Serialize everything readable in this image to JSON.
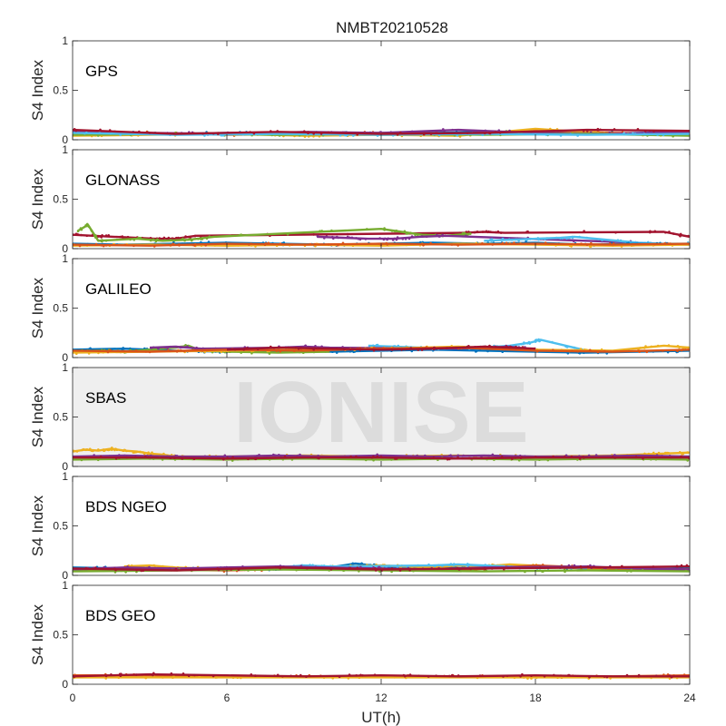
{
  "chart_data": {
    "type": "scatter",
    "title": "NMBT20210528",
    "xlabel": "UT(h)",
    "ylabel": "S4 Index",
    "xlim": [
      0,
      24
    ],
    "ylim": [
      0,
      1
    ],
    "x_ticks": [
      "0",
      "6",
      "12",
      "18",
      "24"
    ],
    "y_ticks": [
      "0",
      "0.5",
      "1"
    ],
    "watermark": "IONISE",
    "grid": false,
    "panels": [
      {
        "label": "GPS",
        "series": [
          {
            "color": "#0072bd",
            "x": [
              0,
              2,
              4,
              6,
              8,
              10,
              12,
              14,
              16,
              18,
              20,
              22,
              24
            ],
            "y": [
              0.08,
              0.07,
              0.06,
              0.07,
              0.06,
              0.07,
              0.06,
              0.07,
              0.08,
              0.07,
              0.06,
              0.07,
              0.08
            ]
          },
          {
            "color": "#d95319",
            "x": [
              0,
              3,
              6,
              9,
              12,
              15,
              18,
              21,
              24
            ],
            "y": [
              0.06,
              0.07,
              0.05,
              0.06,
              0.07,
              0.06,
              0.09,
              0.07,
              0.06
            ]
          },
          {
            "color": "#edb120",
            "x": [
              0,
              3,
              6,
              9,
              12,
              15,
              18,
              21,
              24
            ],
            "y": [
              0.04,
              0.05,
              0.06,
              0.04,
              0.05,
              0.04,
              0.11,
              0.06,
              0.05
            ]
          },
          {
            "color": "#7e2f8e",
            "x": [
              0,
              3,
              6,
              9,
              12,
              15,
              18,
              21,
              24
            ],
            "y": [
              0.09,
              0.07,
              0.06,
              0.08,
              0.07,
              0.1,
              0.07,
              0.06,
              0.08
            ]
          },
          {
            "color": "#77ac30",
            "x": [
              0,
              4,
              8,
              12,
              16,
              20,
              24
            ],
            "y": [
              0.05,
              0.06,
              0.05,
              0.06,
              0.05,
              0.06,
              0.04
            ]
          },
          {
            "color": "#4dbeee",
            "x": [
              0,
              4,
              8,
              12,
              16,
              20,
              24
            ],
            "y": [
              0.07,
              0.05,
              0.06,
              0.05,
              0.06,
              0.05,
              0.06
            ]
          },
          {
            "color": "#a2142f",
            "x": [
              0,
              4,
              8,
              12,
              16,
              20,
              24
            ],
            "y": [
              0.1,
              0.06,
              0.08,
              0.06,
              0.07,
              0.1,
              0.09
            ]
          }
        ]
      },
      {
        "label": "GLONASS",
        "series": [
          {
            "color": "#a2142f",
            "x": [
              0,
              0.8,
              1.6,
              2.4,
              3.2,
              4.0,
              4.8,
              15.2,
              16.0,
              16.8,
              23.0,
              24.0
            ],
            "y": [
              0.14,
              0.13,
              0.12,
              0.11,
              0.1,
              0.1,
              0.13,
              0.16,
              0.17,
              0.16,
              0.17,
              0.12
            ]
          },
          {
            "color": "#77ac30",
            "x": [
              0.2,
              0.6,
              1.0,
              2.5,
              3.5,
              4.5,
              5.5,
              12.0,
              12.8,
              13.6,
              14.5,
              15.5
            ],
            "y": [
              0.18,
              0.24,
              0.08,
              0.1,
              0.08,
              0.09,
              0.12,
              0.2,
              0.17,
              0.14,
              0.13,
              0.15
            ]
          },
          {
            "color": "#7e2f8e",
            "x": [
              9.5,
              10.5,
              11.5,
              12.5,
              13.5,
              14.5,
              21.0,
              22.0
            ],
            "y": [
              0.12,
              0.11,
              0.1,
              0.1,
              0.12,
              0.13,
              0.07,
              0.06
            ]
          },
          {
            "color": "#4dbeee",
            "x": [
              16.0,
              17.0,
              18.0,
              19.0,
              19.5,
              22.0,
              23.0,
              24.0
            ],
            "y": [
              0.08,
              0.09,
              0.1,
              0.11,
              0.12,
              0.06,
              0.05,
              0.05
            ]
          },
          {
            "color": "#0072bd",
            "x": [
              0,
              2,
              4,
              6,
              8,
              10,
              12,
              14,
              16,
              18,
              20,
              22,
              24
            ],
            "y": [
              0.05,
              0.04,
              0.05,
              0.06,
              0.05,
              0.04,
              0.05,
              0.06,
              0.05,
              0.06,
              0.04,
              0.05,
              0.04
            ]
          },
          {
            "color": "#edb120",
            "x": [
              0,
              3,
              6,
              9,
              12,
              15,
              18,
              21,
              24
            ],
            "y": [
              0.03,
              0.04,
              0.03,
              0.04,
              0.03,
              0.05,
              0.04,
              0.03,
              0.04
            ]
          },
          {
            "color": "#d95319",
            "x": [
              0,
              3,
              6,
              9,
              12,
              15,
              18,
              21,
              24
            ],
            "y": [
              0.04,
              0.03,
              0.05,
              0.04,
              0.05,
              0.04,
              0.05,
              0.04,
              0.05
            ]
          }
        ]
      },
      {
        "label": "GALILEO",
        "series": [
          {
            "color": "#0072bd",
            "x": [
              0,
              2,
              4,
              6,
              8,
              10,
              12,
              14,
              16,
              18,
              20,
              22,
              24
            ],
            "y": [
              0.08,
              0.09,
              0.07,
              0.06,
              0.07,
              0.06,
              0.07,
              0.08,
              0.07,
              0.06,
              0.05,
              0.06,
              0.07
            ]
          },
          {
            "color": "#77ac30",
            "x": [
              0,
              1,
              2,
              3,
              4,
              4.5,
              5,
              6,
              8,
              10
            ],
            "y": [
              0.06,
              0.07,
              0.06,
              0.08,
              0.1,
              0.12,
              0.07,
              0.06,
              0.05,
              0.06
            ]
          },
          {
            "color": "#4dbeee",
            "x": [
              11.5,
              12.5,
              13.5,
              14.5,
              16,
              17,
              17.8,
              18.2,
              20
            ],
            "y": [
              0.12,
              0.11,
              0.1,
              0.09,
              0.1,
              0.12,
              0.15,
              0.18,
              0.07
            ]
          },
          {
            "color": "#7e2f8e",
            "x": [
              3,
              4,
              5,
              8,
              9,
              10,
              15,
              16,
              17,
              18
            ],
            "y": [
              0.1,
              0.11,
              0.09,
              0.1,
              0.11,
              0.1,
              0.09,
              0.1,
              0.11,
              0.08
            ]
          },
          {
            "color": "#edb120",
            "x": [
              0,
              3,
              6,
              9,
              12,
              15,
              18,
              21,
              23,
              24
            ],
            "y": [
              0.05,
              0.06,
              0.07,
              0.08,
              0.09,
              0.11,
              0.08,
              0.07,
              0.12,
              0.1
            ]
          },
          {
            "color": "#d95319",
            "x": [
              0,
              3,
              6,
              9,
              12,
              15,
              18,
              21,
              24
            ],
            "y": [
              0.07,
              0.06,
              0.08,
              0.07,
              0.09,
              0.1,
              0.07,
              0.06,
              0.08
            ]
          },
          {
            "color": "#a2142f",
            "x": [
              6,
              8,
              10,
              12,
              14,
              16,
              18
            ],
            "y": [
              0.08,
              0.1,
              0.09,
              0.08,
              0.09,
              0.11,
              0.09
            ]
          }
        ]
      },
      {
        "label": "SBAS",
        "series": [
          {
            "color": "#edb120",
            "x": [
              0,
              0.5,
              1,
              1.5,
              2,
              2.5,
              3,
              3.5,
              4,
              6,
              9,
              12,
              15,
              18,
              21,
              23,
              24
            ],
            "y": [
              0.15,
              0.17,
              0.16,
              0.18,
              0.16,
              0.15,
              0.13,
              0.12,
              0.1,
              0.1,
              0.11,
              0.1,
              0.11,
              0.1,
              0.11,
              0.13,
              0.14
            ]
          },
          {
            "color": "#7e2f8e",
            "x": [
              0,
              2,
              4,
              6,
              8,
              10,
              12,
              14,
              16,
              18,
              20,
              22,
              24
            ],
            "y": [
              0.1,
              0.11,
              0.1,
              0.1,
              0.11,
              0.1,
              0.11,
              0.1,
              0.11,
              0.1,
              0.1,
              0.11,
              0.1
            ]
          },
          {
            "color": "#77ac30",
            "x": [
              0,
              3,
              6,
              9,
              12,
              15,
              18,
              21,
              24
            ],
            "y": [
              0.07,
              0.08,
              0.07,
              0.08,
              0.07,
              0.08,
              0.07,
              0.08,
              0.07
            ]
          },
          {
            "color": "#a2142f",
            "x": [
              0,
              3,
              6,
              9,
              12,
              15,
              18,
              21,
              24
            ],
            "y": [
              0.09,
              0.09,
              0.08,
              0.09,
              0.09,
              0.08,
              0.09,
              0.09,
              0.09
            ]
          }
        ]
      },
      {
        "label": "BDS NGEO",
        "series": [
          {
            "color": "#0072bd",
            "x": [
              0,
              2,
              4,
              6,
              8,
              10,
              11,
              12,
              14,
              16,
              18,
              20,
              22,
              24
            ],
            "y": [
              0.08,
              0.07,
              0.06,
              0.07,
              0.06,
              0.08,
              0.12,
              0.09,
              0.08,
              0.07,
              0.09,
              0.07,
              0.06,
              0.07
            ]
          },
          {
            "color": "#edb120",
            "x": [
              2,
              3,
              4,
              5,
              6,
              12,
              13,
              14,
              15,
              16,
              17,
              20,
              22
            ],
            "y": [
              0.09,
              0.1,
              0.08,
              0.07,
              0.06,
              0.1,
              0.09,
              0.08,
              0.1,
              0.09,
              0.11,
              0.07,
              0.06
            ]
          },
          {
            "color": "#4dbeee",
            "x": [
              6,
              7,
              8,
              9,
              10,
              14,
              15,
              18,
              19,
              20
            ],
            "y": [
              0.06,
              0.07,
              0.08,
              0.1,
              0.09,
              0.1,
              0.11,
              0.08,
              0.09,
              0.07
            ]
          },
          {
            "color": "#d95319",
            "x": [
              0,
              3,
              6,
              9,
              12,
              15,
              18,
              21,
              24
            ],
            "y": [
              0.05,
              0.06,
              0.05,
              0.07,
              0.06,
              0.05,
              0.1,
              0.07,
              0.06
            ]
          },
          {
            "color": "#7e2f8e",
            "x": [
              0,
              2,
              4,
              8,
              10,
              12,
              14,
              16,
              20,
              22,
              24
            ],
            "y": [
              0.06,
              0.08,
              0.07,
              0.09,
              0.08,
              0.07,
              0.06,
              0.08,
              0.09,
              0.07,
              0.06
            ]
          },
          {
            "color": "#77ac30",
            "x": [
              0,
              4,
              8,
              12,
              16,
              20,
              24
            ],
            "y": [
              0.04,
              0.05,
              0.06,
              0.05,
              0.04,
              0.05,
              0.04
            ]
          },
          {
            "color": "#a2142f",
            "x": [
              0,
              4,
              8,
              12,
              16,
              20,
              24
            ],
            "y": [
              0.07,
              0.05,
              0.08,
              0.06,
              0.07,
              0.08,
              0.09
            ]
          }
        ]
      },
      {
        "label": "BDS GEO",
        "series": [
          {
            "color": "#d95319",
            "x": [
              0,
              3,
              6,
              9,
              12,
              15,
              18,
              21,
              24
            ],
            "y": [
              0.09,
              0.09,
              0.08,
              0.08,
              0.08,
              0.08,
              0.08,
              0.08,
              0.09
            ]
          },
          {
            "color": "#edb120",
            "x": [
              0,
              3,
              6,
              9,
              12,
              15,
              18,
              21,
              24
            ],
            "y": [
              0.07,
              0.07,
              0.07,
              0.07,
              0.07,
              0.07,
              0.07,
              0.07,
              0.07
            ]
          },
          {
            "color": "#a2142f",
            "x": [
              0,
              3,
              6,
              9,
              12,
              15,
              18,
              21,
              24
            ],
            "y": [
              0.08,
              0.1,
              0.09,
              0.08,
              0.09,
              0.08,
              0.09,
              0.08,
              0.08
            ]
          }
        ]
      }
    ]
  }
}
